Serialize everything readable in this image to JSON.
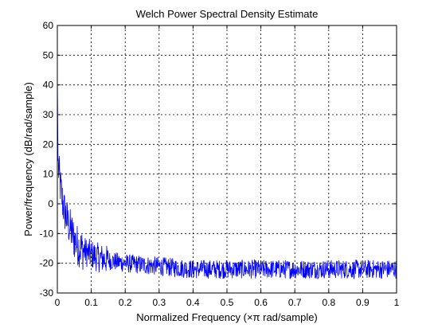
{
  "chart_data": {
    "type": "line",
    "title": "Welch Power Spectral Density Estimate",
    "xlabel": "Normalized Frequency  (×π rad/sample)",
    "ylabel": "Power/frequency (dB/rad/sample)",
    "xlim": [
      0,
      1
    ],
    "ylim": [
      -30,
      60
    ],
    "xticks": [
      "0",
      "0.1",
      "0.2",
      "0.3",
      "0.4",
      "0.5",
      "0.6",
      "0.7",
      "0.8",
      "0.9",
      "1"
    ],
    "yticks": [
      "-30",
      "-20",
      "-10",
      "0",
      "10",
      "20",
      "30",
      "40",
      "50",
      "60"
    ],
    "grid": true,
    "grid_style": "dotted",
    "line_color": "#0000ff",
    "series": [
      {
        "x": [
          0,
          0.002,
          0.005,
          0.01,
          0.015,
          0.02,
          0.03,
          0.04,
          0.05,
          0.06,
          0.07,
          0.08,
          0.1,
          0.12,
          0.15,
          0.2,
          0.25,
          0.3,
          0.35,
          0.4,
          0.5,
          0.6,
          0.7,
          0.8,
          0.9,
          1.0
        ],
        "values": [
          45,
          14,
          10,
          5,
          1,
          -2,
          -6,
          -9,
          -12,
          -14,
          -15,
          -16,
          -17,
          -18,
          -19,
          -20,
          -20.5,
          -21,
          -21.5,
          -22,
          -22,
          -22,
          -22,
          -22,
          -22,
          -22
        ],
        "noise_range": [
          -26,
          -17
        ]
      }
    ]
  }
}
